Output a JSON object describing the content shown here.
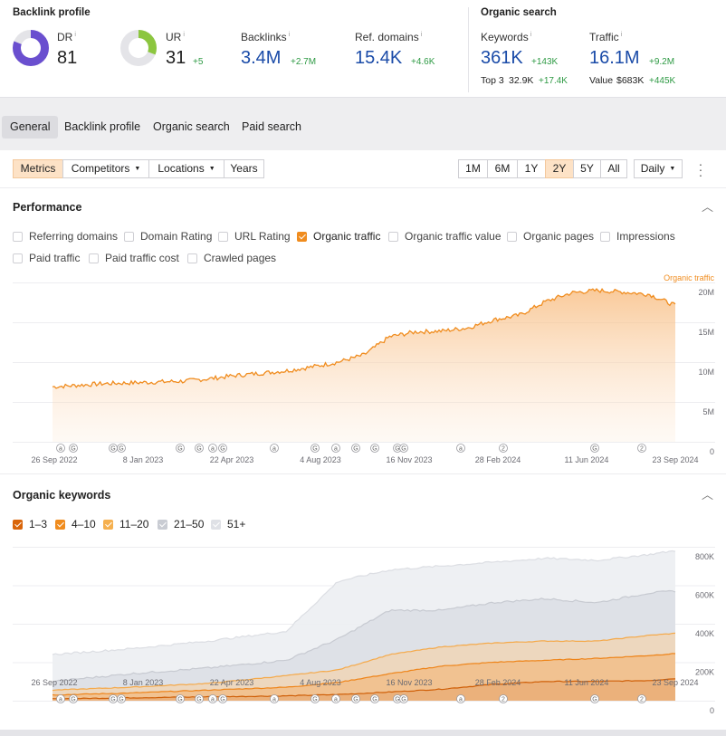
{
  "backlink_profile": {
    "title": "Backlink profile",
    "dr": {
      "label": "DR",
      "value": "81",
      "gauge": 0.81
    },
    "ur": {
      "label": "UR",
      "value": "31",
      "delta": "+5",
      "gauge": 0.31
    },
    "backlinks": {
      "label": "Backlinks",
      "value": "3.4M",
      "delta": "+2.7M"
    },
    "ref_domains": {
      "label": "Ref. domains",
      "value": "15.4K",
      "delta": "+4.6K"
    }
  },
  "organic_search": {
    "title": "Organic search",
    "keywords": {
      "label": "Keywords",
      "value": "361K",
      "delta": "+143K"
    },
    "traffic": {
      "label": "Traffic",
      "value": "16.1M",
      "delta": "+9.2M"
    },
    "top3": {
      "label": "Top 3",
      "value": "32.9K",
      "delta": "+17.4K"
    },
    "value": {
      "label": "Value",
      "value": "$683K",
      "delta": "+445K"
    }
  },
  "info_glyph": "i",
  "tabs": [
    "General",
    "Backlink profile",
    "Organic search",
    "Paid search"
  ],
  "active_tab": "General",
  "toolbar": {
    "metrics": "Metrics",
    "competitors": "Competitors",
    "locations": "Locations",
    "years": "Years",
    "ranges": [
      "1M",
      "6M",
      "1Y",
      "2Y",
      "5Y",
      "All"
    ],
    "active_range": "2Y",
    "granularity": "Daily"
  },
  "performance": {
    "title": "Performance",
    "checkboxes_row1": [
      {
        "label": "Referring domains",
        "checked": false
      },
      {
        "label": "Domain Rating",
        "checked": false
      },
      {
        "label": "URL Rating",
        "checked": false
      },
      {
        "label": "Organic traffic",
        "checked": true
      },
      {
        "label": "Organic traffic value",
        "checked": false
      },
      {
        "label": "Organic pages",
        "checked": false
      },
      {
        "label": "Impressions",
        "checked": false
      }
    ],
    "checkboxes_row2": [
      {
        "label": "Paid traffic",
        "checked": false
      },
      {
        "label": "Paid traffic cost",
        "checked": false
      },
      {
        "label": "Crawled pages",
        "checked": false
      }
    ]
  },
  "organic_keywords": {
    "title": "Organic keywords",
    "legend": [
      {
        "label": "1–3",
        "color": "#d9650a"
      },
      {
        "label": "4–10",
        "color": "#f08c1e"
      },
      {
        "label": "11–20",
        "color": "#f5b04f"
      },
      {
        "label": "21–50",
        "color": "#c9ccd3"
      },
      {
        "label": "51+",
        "color": "#dfe1e6"
      }
    ]
  },
  "chart_data": [
    {
      "type": "area",
      "series_label": "Organic traffic",
      "color": "#f08c1e",
      "x_ticks": [
        "26 Sep 2022",
        "8 Jan 2023",
        "22 Apr 2023",
        "4 Aug 2023",
        "16 Nov 2023",
        "28 Feb 2024",
        "11 Jun 2024",
        "23 Sep 2024"
      ],
      "y_ticks": [
        "20M",
        "15M",
        "10M",
        "5M",
        "0"
      ],
      "ylim": [
        0,
        20000000
      ],
      "x_months": [
        0,
        1,
        2,
        3,
        4,
        5,
        6,
        7,
        8,
        9,
        10,
        11,
        12,
        13,
        14,
        15,
        16,
        17,
        18,
        19,
        20,
        21,
        22,
        23,
        24
      ],
      "values": [
        6.9,
        7.1,
        7.3,
        7.4,
        7.5,
        7.6,
        7.9,
        8.3,
        8.6,
        8.9,
        9.4,
        10.0,
        10.9,
        13.2,
        13.8,
        13.9,
        14.3,
        15.3,
        15.9,
        17.6,
        18.7,
        19.0,
        18.8,
        18.5,
        17.1
      ],
      "markers": [
        "a",
        "G",
        "G",
        "G",
        "G",
        "G",
        "a",
        "G",
        "a",
        "G",
        "a",
        "G",
        "G",
        "G",
        "G",
        "a",
        "2",
        "G",
        "2"
      ]
    },
    {
      "type": "area",
      "stacked": true,
      "x_ticks": [
        "26 Sep 2022",
        "8 Jan 2023",
        "22 Apr 2023",
        "4 Aug 2023",
        "16 Nov 2023",
        "28 Feb 2024",
        "11 Jun 2024",
        "23 Sep 2024"
      ],
      "y_ticks": [
        "800K",
        "600K",
        "400K",
        "200K",
        "0"
      ],
      "ylim": [
        0,
        800000
      ],
      "x_months": [
        0,
        3,
        6,
        9,
        11,
        13,
        15,
        17,
        19,
        21,
        23,
        24
      ],
      "series": [
        {
          "name": "1–3",
          "values": [
            10,
            15,
            20,
            25,
            32,
            45,
            60,
            85,
            100,
            100,
            105,
            115
          ]
        },
        {
          "name": "4–10",
          "values": [
            30,
            40,
            55,
            70,
            95,
            140,
            180,
            200,
            210,
            220,
            235,
            245
          ]
        },
        {
          "name": "11–20",
          "values": [
            55,
            70,
            90,
            130,
            160,
            240,
            280,
            300,
            310,
            310,
            340,
            350
          ]
        },
        {
          "name": "21–50",
          "values": [
            100,
            140,
            170,
            210,
            320,
            470,
            470,
            510,
            530,
            510,
            560,
            570
          ]
        },
        {
          "name": "51+",
          "values": [
            240,
            270,
            310,
            360,
            620,
            680,
            700,
            720,
            740,
            730,
            760,
            780
          ]
        }
      ],
      "markers": [
        "a",
        "G",
        "G",
        "G",
        "G",
        "G",
        "a",
        "G",
        "a",
        "G",
        "a",
        "G",
        "G",
        "G",
        "G",
        "a",
        "2",
        "G",
        "2"
      ]
    }
  ]
}
